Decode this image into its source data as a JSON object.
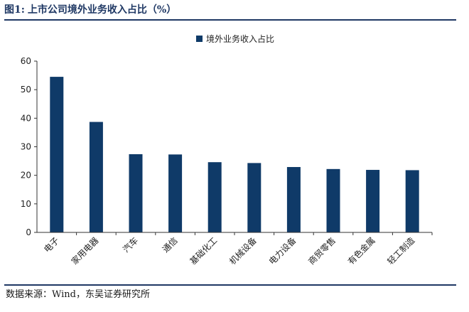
{
  "header": {
    "figure_no": "图1:",
    "title": "上市公司境外业务收入占比（%）"
  },
  "source": {
    "label": "数据来源：",
    "text": "Wind，东吴证券研究所"
  },
  "colors": {
    "bar": "#0f3a68",
    "rule": "#1f3864",
    "axis": "#333333"
  },
  "chart_data": {
    "type": "bar",
    "categories": [
      "电子",
      "家用电器",
      "汽车",
      "通信",
      "基础化工",
      "机械设备",
      "电力设备",
      "商贸零售",
      "有色金属",
      "轻工制造"
    ],
    "series": [
      {
        "name": "境外业务收入占比",
        "values": [
          54.5,
          38.7,
          27.4,
          27.3,
          24.6,
          24.3,
          22.9,
          22.2,
          21.9,
          21.8
        ]
      }
    ],
    "ylim": [
      0,
      60
    ],
    "yticks": [
      0,
      10,
      20,
      30,
      40,
      50,
      60
    ],
    "legend": "top-center",
    "grid": false
  }
}
